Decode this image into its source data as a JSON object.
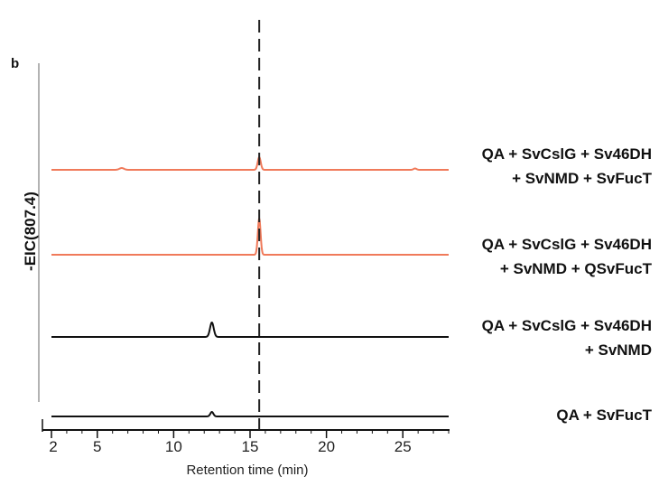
{
  "chart_data": {
    "type": "line",
    "panel_label": "b",
    "xlabel": "Retention time (min)",
    "ylabel": "-EIC(807.4)",
    "xlim": [
      2,
      28
    ],
    "xticks": [
      2,
      5,
      10,
      15,
      20,
      25
    ],
    "reference_line_x": 15.6,
    "series": [
      {
        "name_lines": [
          "QA + SvCslG + Sv46DH",
          "+ SvNMD + SvFucT"
        ],
        "color": "#f07a5a",
        "baseline": 0,
        "peaks": [
          {
            "x": 15.6,
            "height": 0.14,
            "width": 0.1
          },
          {
            "x": 6.6,
            "height": 0.02,
            "width": 0.15
          },
          {
            "x": 25.8,
            "height": 0.015,
            "width": 0.1
          }
        ]
      },
      {
        "name_lines": [
          "QA + SvCslG + Sv46DH",
          "+ SvNMD + QSvFucT"
        ],
        "color": "#f07a5a",
        "baseline": 0,
        "peaks": [
          {
            "x": 15.6,
            "height": 0.4,
            "width": 0.09
          }
        ]
      },
      {
        "name_lines": [
          "QA + SvCslG + Sv46DH",
          "+ SvNMD"
        ],
        "color": "#111111",
        "baseline": 0,
        "peaks": [
          {
            "x": 12.5,
            "height": 0.16,
            "width": 0.12
          }
        ]
      },
      {
        "name_lines": [
          "QA + SvFucT"
        ],
        "color": "#111111",
        "baseline": 0,
        "peaks": [
          {
            "x": 12.5,
            "height": 0.05,
            "width": 0.1
          }
        ]
      }
    ]
  }
}
